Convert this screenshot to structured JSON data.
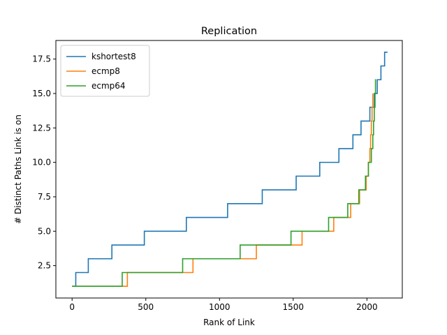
{
  "chart_data": {
    "type": "line",
    "drawstyle": "steps",
    "title": "Replication",
    "xlabel": "Rank of Link",
    "ylabel": "# Distinct Paths Link is on",
    "xlim": [
      -110,
      2240
    ],
    "ylim": [
      0.15,
      18.85
    ],
    "xticks": [
      0,
      500,
      1000,
      1500,
      2000
    ],
    "yticks": [
      2.5,
      5.0,
      7.5,
      10.0,
      12.5,
      15.0,
      17.5
    ],
    "xtick_labels": [
      "0",
      "500",
      "1000",
      "1500",
      "2000"
    ],
    "ytick_labels": [
      "2.5",
      "5.0",
      "7.5",
      "10.0",
      "12.5",
      "15.0",
      "17.5"
    ],
    "legend_position": "top-left",
    "series": [
      {
        "name": "kshortest8",
        "color": "#1f77b4",
        "x": [
          0,
          25,
          25,
          110,
          110,
          270,
          270,
          490,
          490,
          775,
          775,
          1055,
          1055,
          1290,
          1290,
          1520,
          1520,
          1680,
          1680,
          1810,
          1810,
          1905,
          1905,
          1960,
          1960,
          2020,
          2020,
          2050,
          2050,
          2070,
          2070,
          2095,
          2095,
          2120,
          2120,
          2140,
          2140
        ],
        "y": [
          1,
          1,
          2,
          2,
          3,
          3,
          4,
          4,
          5,
          5,
          6,
          6,
          7,
          7,
          8,
          8,
          9,
          9,
          10,
          10,
          11,
          11,
          12,
          12,
          13,
          13,
          14,
          14,
          15,
          15,
          16,
          16,
          17,
          17,
          18,
          18,
          18
        ]
      },
      {
        "name": "ecmp8",
        "color": "#ff7f0e",
        "x": [
          0,
          375,
          375,
          820,
          820,
          1250,
          1250,
          1560,
          1560,
          1775,
          1775,
          1890,
          1890,
          1950,
          1950,
          1995,
          1995,
          2010,
          2010,
          2020,
          2020,
          2025,
          2025,
          2030,
          2030,
          2035,
          2035,
          2040,
          2040
        ],
        "y": [
          1,
          1,
          2,
          2,
          3,
          3,
          4,
          4,
          5,
          5,
          6,
          6,
          7,
          7,
          8,
          8,
          9,
          9,
          10,
          10,
          11,
          11,
          12,
          12,
          13,
          13,
          14,
          14,
          15
        ]
      },
      {
        "name": "ecmp64",
        "color": "#2ca02c",
        "x": [
          0,
          340,
          340,
          750,
          750,
          1140,
          1140,
          1485,
          1485,
          1740,
          1740,
          1870,
          1870,
          1945,
          1945,
          1990,
          1990,
          2010,
          2010,
          2030,
          2030,
          2040,
          2040,
          2045,
          2045,
          2050,
          2050,
          2055,
          2055,
          2058,
          2058,
          2062,
          2062
        ],
        "y": [
          1,
          1,
          2,
          2,
          3,
          3,
          4,
          4,
          5,
          5,
          6,
          6,
          7,
          7,
          8,
          8,
          9,
          9,
          10,
          10,
          11,
          11,
          12,
          12,
          13,
          13,
          14,
          14,
          15,
          15,
          16,
          16,
          16
        ]
      }
    ]
  }
}
